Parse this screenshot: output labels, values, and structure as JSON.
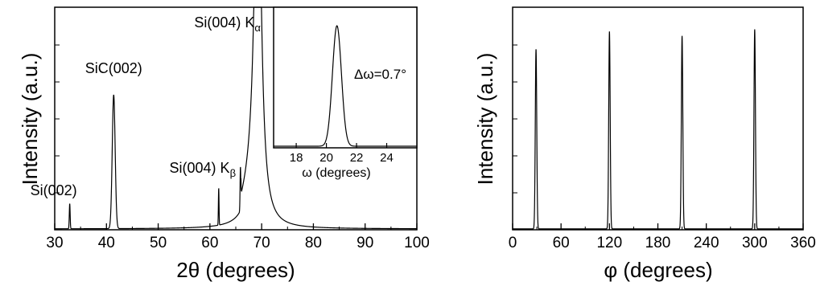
{
  "chart_data": [
    {
      "type": "line",
      "xlabel": "2θ (degrees)",
      "ylabel": "Intensity (a.u.)",
      "xlim": [
        30,
        100
      ],
      "ylim": [
        0,
        1
      ],
      "xticks": [
        30,
        40,
        50,
        60,
        70,
        80,
        90,
        100
      ],
      "grid": false,
      "peaks": [
        {
          "x": 32.9,
          "y": 0.115,
          "label": "Si(002)"
        },
        {
          "x": 41.4,
          "y": 0.61,
          "label": "SiC(002)"
        },
        {
          "x": 61.7,
          "y": 0.17,
          "label": "Si(004) Kβ"
        },
        {
          "x": 65.9,
          "y": 0.2,
          "label": ""
        },
        {
          "x": 69.3,
          "y": 1.0,
          "label": "Si(004) Kα"
        }
      ],
      "inset": {
        "type": "line",
        "xlabel": "ω (degrees)",
        "xlim": [
          16.5,
          26
        ],
        "xticks": [
          18,
          20,
          22,
          24
        ],
        "peak_center": 20.7,
        "fwhm": 0.7,
        "annotation": "Δω=0.7°"
      }
    },
    {
      "type": "line",
      "xlabel": "φ (degrees)",
      "ylabel": "Intensity (a.u.)",
      "xlim": [
        0,
        360
      ],
      "ylim": [
        0,
        1
      ],
      "xticks": [
        0,
        60,
        120,
        180,
        240,
        300,
        360
      ],
      "grid": false,
      "peaks": [
        {
          "x": 29,
          "y": 0.82
        },
        {
          "x": 120,
          "y": 0.9
        },
        {
          "x": 210,
          "y": 0.88
        },
        {
          "x": 300,
          "y": 0.91
        }
      ]
    }
  ]
}
